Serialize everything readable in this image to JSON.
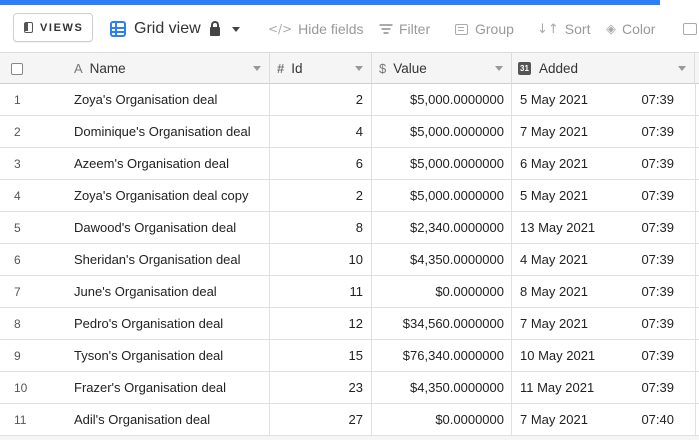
{
  "toolbar": {
    "views_label": "VIEWS",
    "view_name": "Grid view",
    "hide_fields_label": "Hide fields",
    "filter_label": "Filter",
    "group_label": "Group",
    "sort_label": "Sort",
    "color_label": "Color"
  },
  "colors": {
    "accent": "#2d7ff9",
    "header_bg": "#f5f5f5",
    "border": "#dcdcdc"
  },
  "columns": {
    "name": "Name",
    "id": "Id",
    "value": "Value",
    "added": "Added",
    "added_icon_text": "31"
  },
  "rows": [
    {
      "num": "1",
      "name": "Zoya's Organisation deal",
      "id": "2",
      "value": "$5,000.0000000",
      "date": "5 May 2021",
      "time": "07:39"
    },
    {
      "num": "2",
      "name": "Dominique's Organisation deal",
      "id": "4",
      "value": "$5,000.0000000",
      "date": "7 May 2021",
      "time": "07:39"
    },
    {
      "num": "3",
      "name": "Azeem's Organisation deal",
      "id": "6",
      "value": "$5,000.0000000",
      "date": "6 May 2021",
      "time": "07:39"
    },
    {
      "num": "4",
      "name": "Zoya's Organisation deal copy",
      "id": "2",
      "value": "$5,000.0000000",
      "date": "5 May 2021",
      "time": "07:39"
    },
    {
      "num": "5",
      "name": "Dawood's Organisation deal",
      "id": "8",
      "value": "$2,340.0000000",
      "date": "13 May 2021",
      "time": "07:39"
    },
    {
      "num": "6",
      "name": "Sheridan's Organisation deal",
      "id": "10",
      "value": "$4,350.0000000",
      "date": "4 May 2021",
      "time": "07:39"
    },
    {
      "num": "7",
      "name": "June's Organisation deal",
      "id": "11",
      "value": "$0.0000000",
      "date": "8 May 2021",
      "time": "07:39"
    },
    {
      "num": "8",
      "name": "Pedro's Organisation deal",
      "id": "12",
      "value": "$34,560.0000000",
      "date": "7 May 2021",
      "time": "07:39"
    },
    {
      "num": "9",
      "name": "Tyson's Organisation deal",
      "id": "15",
      "value": "$76,340.0000000",
      "date": "10 May 2021",
      "time": "07:39"
    },
    {
      "num": "10",
      "name": "Frazer's Organisation deal",
      "id": "23",
      "value": "$4,350.0000000",
      "date": "11 May 2021",
      "time": "07:39"
    },
    {
      "num": "11",
      "name": "Adil's Organisation deal",
      "id": "27",
      "value": "$0.0000000",
      "date": "7 May 2021",
      "time": "07:40"
    }
  ]
}
